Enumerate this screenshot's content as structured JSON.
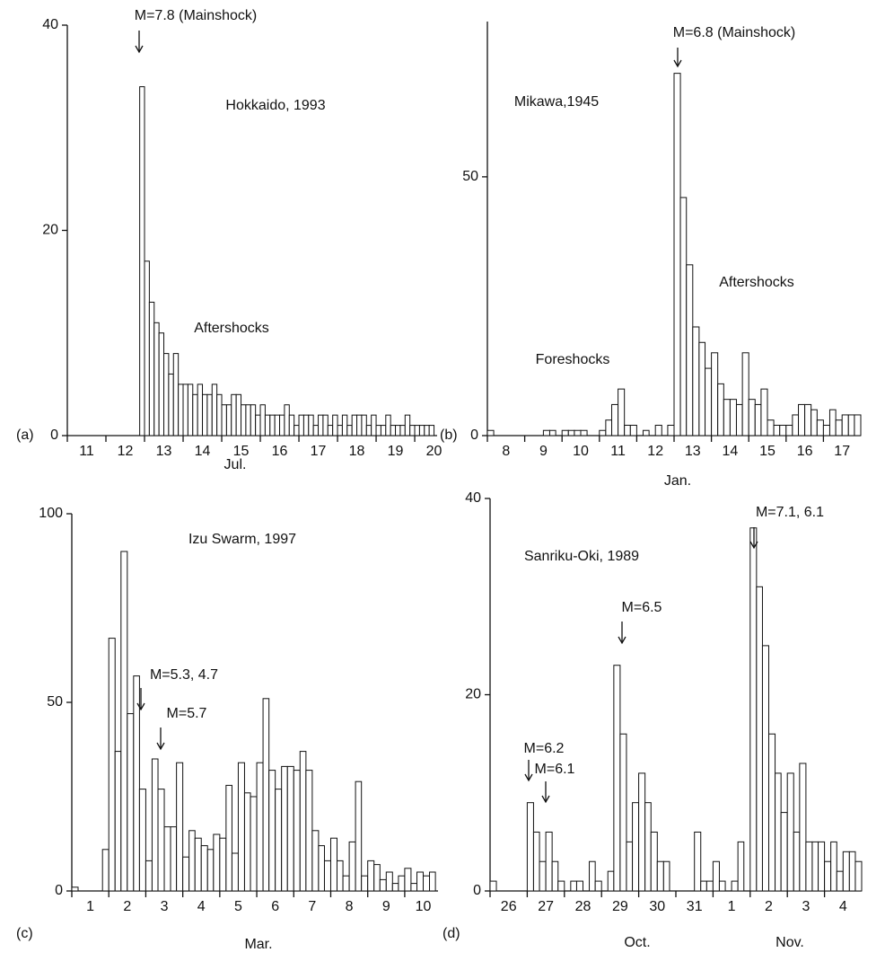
{
  "chart_data": [
    {
      "type": "histogram",
      "panel_label": "(a)",
      "title": "Hokkaido, 1993",
      "xlabels": [
        "Jul."
      ],
      "color": "#ffffff",
      "annotations": [
        "M=7.8 (Mainshock)",
        "Aftershocks"
      ],
      "xlim": [
        11,
        20.58
      ],
      "ylim": [
        0,
        40
      ],
      "yticks": [
        0,
        20,
        40
      ],
      "xticks": [
        11,
        12,
        13,
        14,
        15,
        16,
        17,
        18,
        19,
        20
      ],
      "bins": [
        12.875,
        13,
        13.125,
        13.25,
        13.375,
        13.5,
        13.625,
        13.75,
        13.875,
        14,
        14.125,
        14.25,
        14.375,
        14.5,
        14.625,
        14.75,
        14.875,
        15,
        15.125,
        15.25,
        15.375,
        15.5,
        15.625,
        15.75,
        15.875,
        16,
        16.125,
        16.25,
        16.375,
        16.5,
        16.625,
        16.75,
        16.875,
        17,
        17.125,
        17.25,
        17.375,
        17.5,
        17.625,
        17.75,
        17.875,
        18,
        18.125,
        18.25,
        18.375,
        18.5,
        18.625,
        18.75,
        18.875,
        19,
        19.125,
        19.25,
        19.375,
        19.5,
        19.625,
        19.75,
        19.875,
        20,
        20.125,
        20.25,
        20.375,
        20.5
      ],
      "values": [
        34,
        17,
        13,
        11,
        10,
        8,
        6,
        8,
        5,
        5,
        5,
        4,
        5,
        4,
        4,
        5,
        4,
        3,
        3,
        4,
        4,
        3,
        3,
        3,
        2,
        3,
        2,
        2,
        2,
        2,
        3,
        2,
        1,
        2,
        2,
        2,
        1,
        2,
        2,
        1,
        2,
        1,
        2,
        1,
        2,
        2,
        2,
        1,
        2,
        1,
        1,
        2,
        1,
        1,
        1,
        2,
        1,
        1,
        1,
        1,
        1
      ]
    },
    {
      "type": "histogram",
      "panel_label": "(b)",
      "title": "Mikawa,1945",
      "xlabels": [
        "Jan."
      ],
      "color": "#ffffff",
      "annotations": [
        "M=6.8 (Mainshock)",
        "Aftershocks",
        "Foreshocks"
      ],
      "xlim": [
        8,
        18
      ],
      "ylim": [
        0,
        80
      ],
      "yticks": [
        0,
        50
      ],
      "xticks": [
        8,
        9,
        10,
        11,
        12,
        13,
        14,
        15,
        16,
        17
      ],
      "bins": [
        8,
        8.17,
        8.33,
        8.5,
        8.67,
        8.83,
        9,
        9.17,
        9.33,
        9.5,
        9.67,
        9.83,
        10,
        10.17,
        10.33,
        10.5,
        10.67,
        10.83,
        11,
        11.17,
        11.33,
        11.5,
        11.67,
        11.83,
        12,
        12.17,
        12.33,
        12.5,
        12.67,
        12.83,
        13,
        13.17,
        13.33,
        13.5,
        13.67,
        13.83,
        14,
        14.17,
        14.33,
        14.5,
        14.67,
        14.83,
        15,
        15.17,
        15.33,
        15.5,
        15.67,
        15.83,
        16,
        16.17,
        16.33,
        16.5,
        16.67,
        16.83,
        17,
        17.17,
        17.33,
        17.5,
        17.67,
        17.83,
        18
      ],
      "values": [
        1,
        0,
        0,
        0,
        0,
        0,
        0,
        0,
        0,
        1,
        1,
        0,
        1,
        1,
        1,
        1,
        0,
        0,
        1,
        3,
        6,
        9,
        2,
        2,
        0,
        1,
        0,
        2,
        0,
        2,
        70,
        46,
        33,
        21,
        18,
        13,
        16,
        10,
        7,
        7,
        6,
        16,
        7,
        6,
        9,
        3,
        2,
        2,
        2,
        4,
        6,
        6,
        5,
        3,
        2,
        5,
        3,
        4,
        4,
        4
      ]
    },
    {
      "type": "histogram",
      "panel_label": "(c)",
      "title": "Izu Swarm, 1997",
      "xlabels": [
        "Mar."
      ],
      "color": "#ffffff",
      "annotations": [
        "M=5.3, 4.7",
        "M=5.7"
      ],
      "xlim": [
        1,
        10.9
      ],
      "ylim": [
        0,
        100
      ],
      "yticks": [
        0,
        50,
        100
      ],
      "xticks": [
        1,
        2,
        3,
        4,
        5,
        6,
        7,
        8,
        9,
        10
      ],
      "bins": [
        1,
        1.17,
        1.33,
        1.5,
        1.67,
        1.83,
        2,
        2.17,
        2.33,
        2.5,
        2.67,
        2.83,
        3,
        3.17,
        3.33,
        3.5,
        3.67,
        3.83,
        4,
        4.17,
        4.33,
        4.5,
        4.67,
        4.83,
        5,
        5.17,
        5.33,
        5.5,
        5.67,
        5.83,
        6,
        6.17,
        6.33,
        6.5,
        6.67,
        6.83,
        7,
        7.17,
        7.33,
        7.5,
        7.67,
        7.83,
        8,
        8.17,
        8.33,
        8.5,
        8.67,
        8.83,
        9,
        9.17,
        9.33,
        9.5,
        9.67,
        9.83,
        10,
        10.17,
        10.33,
        10.5,
        10.67,
        10.83
      ],
      "values": [
        1,
        0,
        0,
        0,
        0,
        11,
        67,
        37,
        90,
        47,
        57,
        27,
        8,
        35,
        27,
        17,
        17,
        34,
        9,
        16,
        14,
        12,
        11,
        15,
        14,
        28,
        10,
        34,
        26,
        25,
        34,
        51,
        32,
        27,
        33,
        33,
        32,
        37,
        32,
        16,
        12,
        8,
        14,
        8,
        4,
        13,
        29,
        4,
        8,
        7,
        3,
        5,
        2,
        4,
        6,
        2,
        5,
        4,
        5
      ]
    },
    {
      "type": "histogram",
      "panel_label": "(d)",
      "title": "Sanriku-Oki, 1989",
      "xlabels": [
        "Oct.",
        "Nov."
      ],
      "color": "#ffffff",
      "annotations": [
        "M=7.1, 6.1",
        "M=6.5",
        "M=6.2",
        "M=6.1"
      ],
      "xlim": [
        26,
        36
      ],
      "ylim": [
        0,
        40
      ],
      "yticks": [
        0,
        20,
        40
      ],
      "xticks": [
        26,
        27,
        28,
        29,
        30,
        31,
        {
          "value": 32,
          "label": "1"
        },
        {
          "value": 33,
          "label": "2"
        },
        {
          "value": 34,
          "label": "3"
        },
        {
          "value": 35,
          "label": "4"
        }
      ],
      "bins": [
        26,
        26.17,
        26.33,
        26.5,
        26.67,
        26.83,
        27,
        27.17,
        27.33,
        27.5,
        27.67,
        27.83,
        28,
        28.17,
        28.33,
        28.5,
        28.67,
        28.83,
        29,
        29.17,
        29.33,
        29.5,
        29.67,
        29.83,
        30,
        30.17,
        30.33,
        30.5,
        30.67,
        30.83,
        31,
        31.17,
        31.33,
        31.5,
        31.67,
        31.83,
        32,
        32.17,
        32.33,
        32.5,
        32.67,
        32.83,
        33,
        33.17,
        33.33,
        33.5,
        33.67,
        33.83,
        34,
        34.17,
        34.33,
        34.5,
        34.67,
        34.83,
        35,
        35.17,
        35.33,
        35.5,
        35.67,
        35.83,
        36
      ],
      "values": [
        1,
        0,
        0,
        0,
        0,
        0,
        9,
        6,
        3,
        6,
        3,
        1,
        0,
        1,
        1,
        0,
        3,
        1,
        0,
        2,
        23,
        16,
        5,
        9,
        12,
        9,
        6,
        3,
        3,
        0,
        0,
        0,
        0,
        6,
        1,
        1,
        3,
        1,
        0,
        1,
        5,
        0,
        37,
        31,
        25,
        16,
        12,
        8,
        12,
        6,
        13,
        5,
        5,
        5,
        3,
        5,
        2,
        4,
        4,
        3
      ]
    }
  ]
}
